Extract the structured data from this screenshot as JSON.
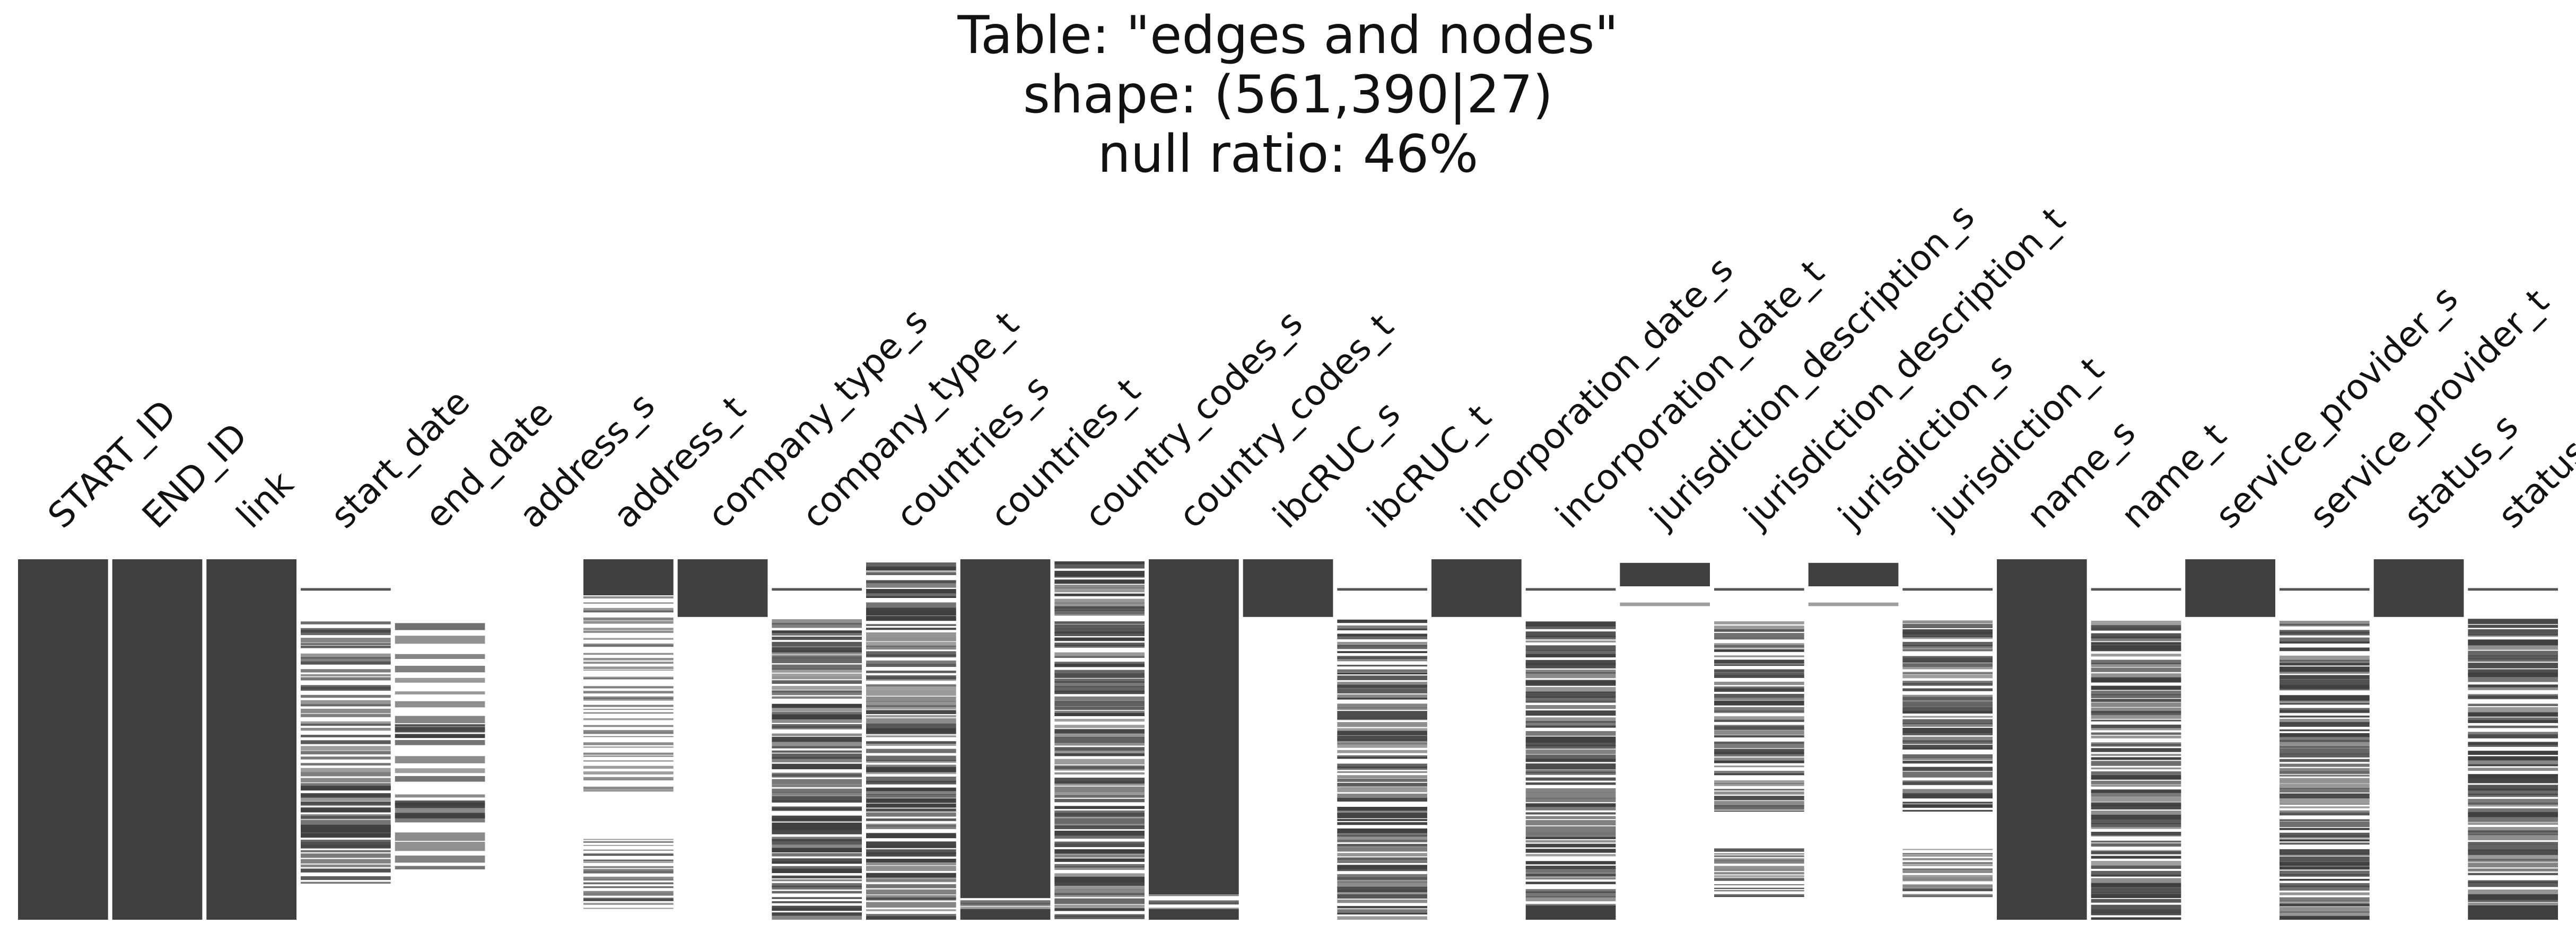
{
  "chart_data": {
    "type": "heatmap",
    "subtype": "missingno-matrix",
    "title_lines": [
      "Table: \"edges and nodes\"",
      "shape: (561,390|27)",
      "null ratio: 46%"
    ],
    "rows": 561390,
    "present_color": "#404040",
    "missing_color": "#ffffff",
    "columns": [
      {
        "name": "START_ID",
        "segments": [
          [
            0,
            1,
            1.0
          ]
        ]
      },
      {
        "name": "END_ID",
        "segments": [
          [
            0,
            1,
            1.0
          ]
        ]
      },
      {
        "name": "link",
        "segments": [
          [
            0,
            1,
            1.0
          ]
        ]
      },
      {
        "name": "start_date",
        "segments": [
          [
            0.08,
            0.087,
            0.9
          ],
          [
            0.165,
            0.9,
            0.6,
            51
          ],
          [
            0.62,
            0.8,
            0.9,
            8
          ]
        ]
      },
      {
        "name": "end_date",
        "segments": [
          [
            0.17,
            0.87,
            0.35,
            20
          ],
          [
            0.45,
            0.5,
            0.8,
            4
          ],
          [
            0.66,
            0.72,
            0.85,
            5
          ]
        ]
      },
      {
        "name": "address_s",
        "segments": []
      },
      {
        "name": "address_t",
        "segments": [
          [
            0,
            0.1,
            1.0
          ],
          [
            0.1,
            0.17,
            0.35,
            5
          ],
          [
            0.17,
            0.65,
            0.25,
            36
          ],
          [
            0.77,
            0.97,
            0.45,
            21
          ]
        ]
      },
      {
        "name": "company_type_s",
        "segments": [
          [
            0,
            0.075,
            1.0
          ],
          [
            0.075,
            0.16,
            1.0
          ]
        ]
      },
      {
        "name": "company_type_t",
        "segments": [
          [
            0.08,
            0.087,
            0.9
          ],
          [
            0.165,
            1,
            0.8,
            70
          ]
        ]
      },
      {
        "name": "countries_s",
        "segments": [
          [
            0,
            1,
            0.8,
            80
          ]
        ]
      },
      {
        "name": "countries_t",
        "segments": [
          [
            0,
            0.94,
            1.0
          ],
          [
            0.94,
            0.97,
            0.55,
            4
          ],
          [
            0.97,
            1,
            1.0
          ]
        ]
      },
      {
        "name": "country_codes_s",
        "segments": [
          [
            0,
            1,
            0.8,
            80
          ]
        ]
      },
      {
        "name": "country_codes_t",
        "segments": [
          [
            0,
            0.93,
            1.0
          ],
          [
            0.93,
            0.97,
            0.55,
            4
          ],
          [
            0.97,
            1,
            1.0
          ]
        ]
      },
      {
        "name": "ibcRUC_s",
        "segments": [
          [
            0,
            0.075,
            1.0
          ],
          [
            0.075,
            0.16,
            1.0
          ]
        ]
      },
      {
        "name": "ibcRUC_t",
        "segments": [
          [
            0.08,
            0.087,
            0.9
          ],
          [
            0.165,
            1,
            0.8,
            70
          ]
        ]
      },
      {
        "name": "incorporation_date_s",
        "segments": [
          [
            0,
            0.075,
            1.0
          ],
          [
            0.075,
            0.16,
            1.0
          ]
        ]
      },
      {
        "name": "incorporation_date_t",
        "segments": [
          [
            0.08,
            0.087,
            0.9
          ],
          [
            0.165,
            0.96,
            0.8,
            60
          ],
          [
            0.96,
            1,
            1.0
          ]
        ]
      },
      {
        "name": "jurisdiction_description_s",
        "segments": [
          [
            0.01,
            0.075,
            1.0
          ],
          [
            0.12,
            0.13,
            0.5
          ]
        ]
      },
      {
        "name": "jurisdiction_description_t",
        "segments": [
          [
            0.08,
            0.087,
            0.9
          ],
          [
            0.165,
            0.7,
            0.75,
            45
          ],
          [
            0.8,
            0.94,
            0.6,
            16
          ]
        ]
      },
      {
        "name": "jurisdiction_s",
        "segments": [
          [
            0.01,
            0.075,
            1.0
          ],
          [
            0.12,
            0.13,
            0.5
          ]
        ]
      },
      {
        "name": "jurisdiction_t",
        "segments": [
          [
            0.08,
            0.087,
            0.9
          ],
          [
            0.165,
            0.7,
            0.75,
            45
          ],
          [
            0.8,
            0.94,
            0.6,
            16
          ]
        ]
      },
      {
        "name": "name_s",
        "segments": [
          [
            0,
            1,
            1.0
          ]
        ]
      },
      {
        "name": "name_t",
        "segments": [
          [
            0.08,
            0.087,
            0.9
          ],
          [
            0.165,
            1,
            0.8,
            70
          ]
        ]
      },
      {
        "name": "service_provider_s",
        "segments": [
          [
            0,
            0.075,
            1.0
          ],
          [
            0.075,
            0.16,
            1.0
          ]
        ]
      },
      {
        "name": "service_provider_t",
        "segments": [
          [
            0.08,
            0.087,
            0.9
          ],
          [
            0.165,
            1,
            0.8,
            70
          ]
        ]
      },
      {
        "name": "status_s",
        "segments": [
          [
            0,
            0.075,
            1.0
          ],
          [
            0.075,
            0.16,
            1.0
          ]
        ]
      },
      {
        "name": "status_t",
        "segments": [
          [
            0.08,
            0.087,
            0.9
          ],
          [
            0.165,
            0.96,
            0.8,
            60
          ],
          [
            0.96,
            1,
            1.0
          ]
        ]
      }
    ]
  }
}
